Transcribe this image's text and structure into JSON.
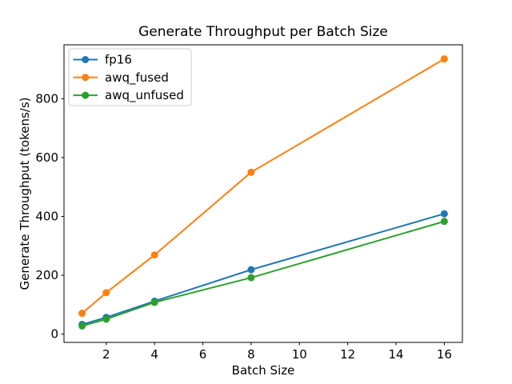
{
  "chart_data": {
    "type": "line",
    "title": "Generate Throughput per Batch Size",
    "xlabel": "Batch Size",
    "ylabel": "Generate Throughput (tokens/s)",
    "x": [
      1,
      2,
      4,
      8,
      16
    ],
    "series": [
      {
        "name": "fp16",
        "color": "#1f77b4",
        "values": [
          33,
          57,
          112,
          219,
          409
        ]
      },
      {
        "name": "awq_fused",
        "color": "#ff7f0e",
        "values": [
          71,
          141,
          269,
          550,
          935
        ]
      },
      {
        "name": "awq_unfused",
        "color": "#2ca02c",
        "values": [
          28,
          51,
          108,
          192,
          383
        ]
      }
    ],
    "xticks": [
      2,
      4,
      6,
      8,
      10,
      12,
      14,
      16
    ],
    "yticks": [
      0,
      200,
      400,
      600,
      800
    ],
    "xlim": [
      0.25,
      16.75
    ],
    "ylim": [
      -28,
      983
    ],
    "grid": false,
    "marker": "o",
    "legend": {
      "position": "upper left",
      "entries": [
        "fp16",
        "awq_fused",
        "awq_unfused"
      ]
    },
    "axis_color": "#000000",
    "legend_border_color": "#cccccc",
    "background_color": "#ffffff"
  }
}
